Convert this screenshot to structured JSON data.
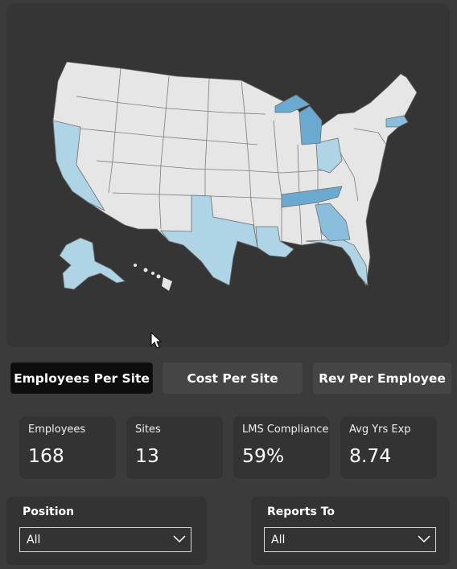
{
  "tabs": [
    {
      "label": "Employees Per Site",
      "active": true
    },
    {
      "label": "Cost Per Site",
      "active": false
    },
    {
      "label": "Rev Per Employee",
      "active": false
    }
  ],
  "kpis": [
    {
      "label": "Employees",
      "value": "168"
    },
    {
      "label": "Sites",
      "value": "13"
    },
    {
      "label": "LMS Compliance",
      "value": "59%"
    },
    {
      "label": "Avg Yrs Exp",
      "value": "8.74"
    }
  ],
  "slicers": [
    {
      "label": "Position",
      "selected": "All"
    },
    {
      "label": "Reports To",
      "selected": "All"
    }
  ],
  "map": {
    "colors": {
      "base": "#e6e6e6",
      "light": "#aed4e6",
      "medium": "#89bfdc",
      "dark": "#6aaad0"
    },
    "highlighted_states": {
      "light": [
        "California",
        "Texas",
        "Alaska",
        "Ohio",
        "Louisiana",
        "Florida"
      ],
      "medium": [
        "Georgia",
        "Massachusetts"
      ],
      "dark": [
        "Michigan",
        "Tennessee"
      ]
    }
  }
}
